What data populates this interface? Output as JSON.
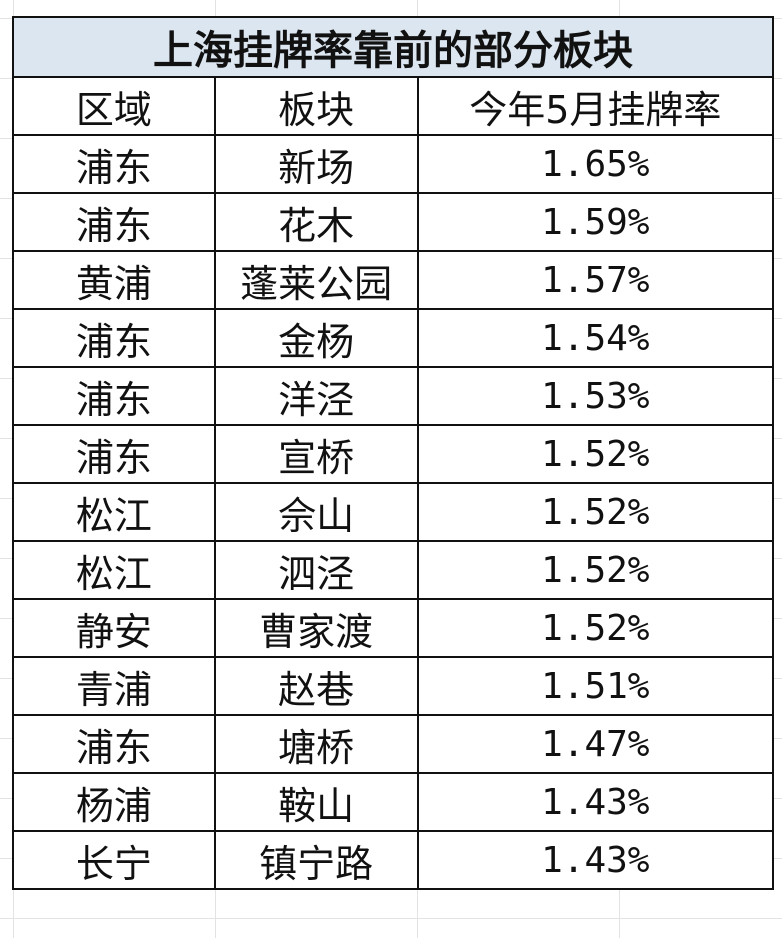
{
  "title": "上海挂牌率靠前的部分板块",
  "headers": [
    "区域",
    "板块",
    "今年5月挂牌率"
  ],
  "rows": [
    [
      "浦东",
      "新场",
      "1.65%"
    ],
    [
      "浦东",
      "花木",
      "1.59%"
    ],
    [
      "黄浦",
      "蓬莱公园",
      "1.57%"
    ],
    [
      "浦东",
      "金杨",
      "1.54%"
    ],
    [
      "浦东",
      "洋泾",
      "1.53%"
    ],
    [
      "浦东",
      "宣桥",
      "1.52%"
    ],
    [
      "松江",
      "佘山",
      "1.52%"
    ],
    [
      "松江",
      "泗泾",
      "1.52%"
    ],
    [
      "静安",
      "曹家渡",
      "1.52%"
    ],
    [
      "青浦",
      "赵巷",
      "1.51%"
    ],
    [
      "浦东",
      "塘桥",
      "1.47%"
    ],
    [
      "杨浦",
      "鞍山",
      "1.43%"
    ],
    [
      "长宁",
      "镇宁路",
      "1.43%"
    ]
  ],
  "colors": {
    "title_bg": "#dce6f1",
    "border": "#111111"
  }
}
